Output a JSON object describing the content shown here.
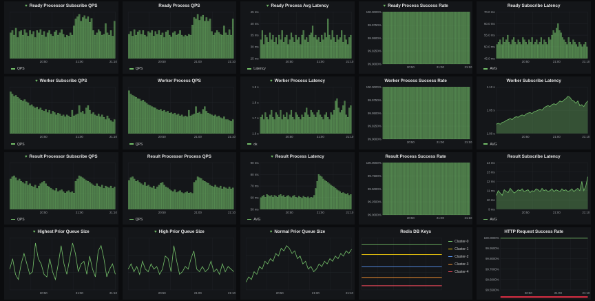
{
  "colors": {
    "green": "#73bf69",
    "panel": "#141619",
    "grid": "#2a2c30",
    "text": "#9fa3a8"
  },
  "panels": [
    {
      "title": "Ready Processor Subscribe QPS",
      "heart": true,
      "kind": "bar",
      "legend": "QPS",
      "yticks": [],
      "xticks": [
        "20:50",
        "21:00",
        "21:10"
      ],
      "values": [
        0.55,
        0.6,
        0.5,
        0.65,
        0.45,
        0.58,
        0.6,
        0.5,
        0.62,
        0.55,
        0.48,
        0.6,
        0.52,
        0.58,
        0.45,
        0.6,
        0.55,
        0.62,
        0.5,
        0.58,
        0.46,
        0.55,
        0.6,
        0.52,
        0.48,
        0.57,
        0.6,
        0.5,
        0.55,
        0.62,
        0.52,
        0.45,
        0.5,
        0.48,
        0.55,
        0.5,
        0.7,
        0.85,
        0.9,
        0.95,
        0.8,
        0.88,
        0.92,
        0.85,
        0.9,
        0.78,
        0.86,
        0.6,
        0.5,
        0.55,
        0.62,
        0.58,
        0.5,
        0.52,
        0.75,
        0.55,
        0.5,
        0.6,
        0.48,
        0.8
      ]
    },
    {
      "title": "Ready Process QPS",
      "heart": false,
      "kind": "bar",
      "legend": "QPS",
      "yticks": [],
      "xticks": [
        "20:50",
        "21:00",
        "21:10"
      ],
      "values": [
        0.52,
        0.58,
        0.48,
        0.62,
        0.5,
        0.57,
        0.6,
        0.52,
        0.6,
        0.5,
        0.47,
        0.58,
        0.55,
        0.6,
        0.48,
        0.58,
        0.52,
        0.6,
        0.5,
        0.55,
        0.45,
        0.57,
        0.6,
        0.5,
        0.46,
        0.55,
        0.58,
        0.5,
        0.53,
        0.6,
        0.5,
        0.47,
        0.5,
        0.48,
        0.52,
        0.5,
        0.72,
        0.88,
        0.85,
        0.95,
        0.82,
        0.9,
        0.93,
        0.8,
        0.88,
        0.8,
        0.85,
        0.58,
        0.5,
        0.55,
        0.6,
        0.56,
        0.52,
        0.5,
        0.7,
        0.55,
        0.5,
        0.62,
        0.5,
        0.85
      ]
    },
    {
      "title": "Ready Process Avg Latency",
      "heart": true,
      "kind": "bar",
      "legend": "Latency",
      "yticks": [
        "45 ms",
        "40 ms",
        "35 ms",
        "30 ms",
        "25 ms"
      ],
      "xticks": [
        "20:50",
        "21:00",
        "21:10"
      ],
      "values": [
        0.4,
        0.6,
        0.3,
        0.5,
        0.45,
        0.35,
        0.55,
        0.4,
        0.5,
        0.35,
        0.45,
        0.3,
        0.5,
        0.4,
        0.6,
        0.35,
        0.45,
        0.5,
        0.3,
        0.4,
        0.55,
        0.45,
        0.35,
        0.5,
        0.4,
        0.45,
        0.3,
        0.5,
        0.6,
        0.4,
        0.45,
        0.35,
        0.5,
        0.55,
        0.7,
        0.45,
        0.5,
        0.4,
        0.45,
        0.35,
        0.5,
        0.4,
        0.55,
        0.45,
        0.85,
        0.5,
        0.4,
        0.6,
        0.45,
        0.35,
        0.5,
        0.4,
        0.45,
        0.6,
        0.35,
        0.5,
        0.4,
        0.3,
        0.45,
        0.5
      ]
    },
    {
      "title": "Ready Process Success Rate",
      "heart": true,
      "kind": "full",
      "legend": "",
      "yticks": [
        "100.0000%",
        "99.9750%",
        "99.9500%",
        "99.9250%",
        "99.9000%"
      ],
      "xticks": [
        "20:50",
        "21:00",
        "21:10"
      ],
      "values": []
    },
    {
      "title": "Ready Subscribe Latency",
      "heart": false,
      "kind": "bar",
      "legend": "AVG",
      "yticks": [
        "70.0 ms",
        "60.0 ms",
        "55.0 ms",
        "50.0 ms",
        "45.0 ms"
      ],
      "xticks": [
        "20:50",
        "21:00",
        "21:10"
      ],
      "values": [
        0.3,
        0.35,
        0.4,
        0.3,
        0.45,
        0.35,
        0.4,
        0.5,
        0.35,
        0.3,
        0.4,
        0.45,
        0.35,
        0.3,
        0.4,
        0.35,
        0.3,
        0.45,
        0.4,
        0.35,
        0.3,
        0.4,
        0.35,
        0.45,
        0.3,
        0.35,
        0.4,
        0.3,
        0.35,
        0.45,
        0.3,
        0.4,
        0.35,
        0.3,
        0.45,
        0.4,
        0.5,
        0.6,
        0.55,
        0.65,
        0.75,
        0.6,
        0.55,
        0.45,
        0.4,
        0.35,
        0.3,
        0.45,
        0.35,
        0.3,
        0.4,
        0.35,
        0.3,
        0.25,
        0.35,
        0.3,
        0.25,
        0.3,
        0.35,
        0.25
      ]
    },
    {
      "title": "Worker Subscribe QPS",
      "heart": true,
      "kind": "bar",
      "legend": "QPS",
      "yticks": [],
      "xticks": [
        "20:50",
        "21:00",
        "21:10"
      ],
      "values": [
        0.9,
        0.85,
        0.8,
        0.82,
        0.78,
        0.75,
        0.72,
        0.7,
        0.73,
        0.68,
        0.66,
        0.6,
        0.62,
        0.58,
        0.55,
        0.57,
        0.52,
        0.55,
        0.5,
        0.48,
        0.52,
        0.45,
        0.5,
        0.42,
        0.48,
        0.45,
        0.4,
        0.44,
        0.42,
        0.38,
        0.4,
        0.36,
        0.4,
        0.38,
        0.35,
        0.5,
        0.38,
        0.4,
        0.42,
        0.6,
        0.45,
        0.48,
        0.42,
        0.55,
        0.6,
        0.5,
        0.42,
        0.45,
        0.4,
        0.38,
        0.42,
        0.36,
        0.4,
        0.35,
        0.3,
        0.38,
        0.32,
        0.28,
        0.25,
        0.3
      ]
    },
    {
      "title": "Worker Process QPS",
      "heart": false,
      "kind": "bar",
      "legend": "QPS",
      "yticks": [],
      "xticks": [
        "20:50",
        "21:00",
        "21:10"
      ],
      "values": [
        0.92,
        0.85,
        0.82,
        0.8,
        0.78,
        0.75,
        0.74,
        0.7,
        0.72,
        0.68,
        0.65,
        0.62,
        0.6,
        0.58,
        0.56,
        0.55,
        0.52,
        0.5,
        0.52,
        0.48,
        0.5,
        0.46,
        0.48,
        0.44,
        0.45,
        0.42,
        0.44,
        0.4,
        0.42,
        0.38,
        0.4,
        0.36,
        0.38,
        0.36,
        0.5,
        0.38,
        0.4,
        0.42,
        0.58,
        0.44,
        0.46,
        0.42,
        0.52,
        0.58,
        0.48,
        0.44,
        0.42,
        0.4,
        0.38,
        0.4,
        0.36,
        0.38,
        0.34,
        0.32,
        0.36,
        0.3,
        0.3,
        0.28,
        0.26,
        0.3
      ]
    },
    {
      "title": "Worker Process Latency",
      "heart": true,
      "kind": "bar",
      "legend": "ok",
      "yticks": [
        "1.9 s",
        "1.8 s",
        "1.7 s",
        "1.6 s"
      ],
      "xticks": [
        "20:50",
        "21:00",
        "21:10"
      ],
      "values": [
        0.35,
        0.4,
        0.3,
        0.45,
        0.35,
        0.3,
        0.4,
        0.5,
        0.35,
        0.3,
        0.45,
        0.4,
        0.35,
        0.5,
        0.3,
        0.4,
        0.35,
        0.45,
        0.3,
        0.4,
        0.5,
        0.35,
        0.3,
        0.45,
        0.4,
        0.35,
        0.3,
        0.4,
        0.35,
        0.45,
        0.55,
        0.4,
        0.35,
        0.5,
        0.45,
        0.4,
        0.35,
        0.45,
        0.5,
        0.4,
        0.35,
        0.3,
        0.4,
        0.45,
        0.35,
        0.3,
        0.45,
        0.4,
        0.5,
        0.7,
        0.75,
        0.55,
        0.45,
        0.5,
        0.6,
        0.7,
        0.4,
        0.35,
        0.55,
        0.6
      ]
    },
    {
      "title": "Worker Process Success Rate",
      "heart": false,
      "kind": "full",
      "legend": "",
      "yticks": [
        "100.0000%",
        "99.9750%",
        "99.9500%",
        "99.9250%",
        "99.9000%"
      ],
      "xticks": [
        "20:50",
        "21:00",
        "21:10"
      ],
      "values": []
    },
    {
      "title": "Worker Subscribe Latency",
      "heart": false,
      "kind": "area",
      "legend": "AVG",
      "yticks": [
        "1.10 s",
        "1.05 s",
        "1.00 s"
      ],
      "xticks": [
        "20:50",
        "21:00",
        "21:10"
      ],
      "values": [
        0.2,
        0.22,
        0.2,
        0.24,
        0.25,
        0.28,
        0.3,
        0.32,
        0.3,
        0.34,
        0.36,
        0.35,
        0.38,
        0.4,
        0.38,
        0.42,
        0.44,
        0.45,
        0.43,
        0.47,
        0.48,
        0.5,
        0.52,
        0.5,
        0.55,
        0.58,
        0.6,
        0.58,
        0.62,
        0.64,
        0.62,
        0.66,
        0.7,
        0.68,
        0.72,
        0.75,
        0.8,
        0.78,
        0.72,
        0.7,
        0.65,
        0.7,
        0.6,
        0.62,
        0.58,
        0.65,
        0.7
      ]
    },
    {
      "title": "Result Processor Subscribe QPS",
      "heart": true,
      "kind": "bar",
      "legend": "QPS",
      "yticks": [],
      "xticks": [
        "20:50",
        "21:00",
        "21:10"
      ],
      "values": [
        0.65,
        0.7,
        0.72,
        0.68,
        0.62,
        0.65,
        0.6,
        0.58,
        0.55,
        0.6,
        0.52,
        0.55,
        0.5,
        0.48,
        0.52,
        0.45,
        0.5,
        0.55,
        0.58,
        0.6,
        0.55,
        0.5,
        0.48,
        0.45,
        0.42,
        0.4,
        0.45,
        0.38,
        0.4,
        0.42,
        0.38,
        0.35,
        0.38,
        0.4,
        0.36,
        0.38,
        0.35,
        0.6,
        0.65,
        0.72,
        0.7,
        0.68,
        0.65,
        0.62,
        0.6,
        0.58,
        0.55,
        0.52,
        0.5,
        0.55,
        0.5,
        0.48,
        0.52,
        0.45,
        0.5,
        0.48,
        0.46,
        0.5,
        0.45,
        0.48
      ]
    },
    {
      "title": "Result Processor Process QPS",
      "heart": false,
      "kind": "bar",
      "legend": "QPS",
      "yticks": [],
      "xticks": [
        "20:50",
        "21:00",
        "21:10"
      ],
      "values": [
        0.62,
        0.68,
        0.7,
        0.65,
        0.6,
        0.62,
        0.58,
        0.55,
        0.52,
        0.58,
        0.5,
        0.52,
        0.48,
        0.46,
        0.5,
        0.44,
        0.48,
        0.52,
        0.56,
        0.58,
        0.52,
        0.48,
        0.46,
        0.43,
        0.4,
        0.38,
        0.42,
        0.36,
        0.38,
        0.4,
        0.36,
        0.34,
        0.36,
        0.38,
        0.35,
        0.36,
        0.34,
        0.58,
        0.62,
        0.7,
        0.68,
        0.66,
        0.62,
        0.6,
        0.58,
        0.56,
        0.52,
        0.5,
        0.48,
        0.52,
        0.48,
        0.46,
        0.5,
        0.44,
        0.48,
        0.46,
        0.44,
        0.48,
        0.44,
        0.46
      ]
    },
    {
      "title": "Result Process Latency",
      "heart": true,
      "kind": "bar",
      "legend": "AVG",
      "yticks": [
        "90 ms",
        "80 ms",
        "70 ms",
        "60 ms",
        "50 ms"
      ],
      "xticks": [
        "20:50",
        "21:00",
        "21:10"
      ],
      "values": [
        0.25,
        0.28,
        0.3,
        0.26,
        0.32,
        0.3,
        0.28,
        0.3,
        0.26,
        0.3,
        0.28,
        0.26,
        0.3,
        0.32,
        0.28,
        0.3,
        0.26,
        0.28,
        0.3,
        0.27,
        0.25,
        0.28,
        0.3,
        0.26,
        0.25,
        0.28,
        0.26,
        0.24,
        0.28,
        0.26,
        0.25,
        0.27,
        0.24,
        0.26,
        0.25,
        0.3,
        0.45,
        0.6,
        0.75,
        0.72,
        0.7,
        0.65,
        0.62,
        0.6,
        0.58,
        0.55,
        0.52,
        0.5,
        0.48,
        0.45,
        0.42,
        0.4,
        0.38,
        0.35,
        0.36,
        0.34,
        0.32,
        0.34,
        0.3,
        0.32
      ]
    },
    {
      "title": "Result Process Success Rate",
      "heart": false,
      "kind": "full",
      "legend": "",
      "yticks": [
        "100.0000%",
        "99.7500%",
        "99.5000%",
        "99.2500%",
        "99.0000%"
      ],
      "xticks": [
        "20:50",
        "21:00",
        "21:10"
      ],
      "values": []
    },
    {
      "title": "Result Subscribe Latency",
      "heart": false,
      "kind": "area",
      "legend": "AVG",
      "yticks": [
        "14 ms",
        "13 ms",
        "12 ms",
        "11 ms",
        "10 ms",
        "9 ms"
      ],
      "xticks": [
        "20:50",
        "21:00",
        "21:10"
      ],
      "values": [
        0.3,
        0.4,
        0.35,
        0.3,
        0.42,
        0.38,
        0.36,
        0.45,
        0.4,
        0.35,
        0.38,
        0.42,
        0.4,
        0.44,
        0.38,
        0.4,
        0.42,
        0.36,
        0.4,
        0.38,
        0.44,
        0.42,
        0.38,
        0.45,
        0.4,
        0.42,
        0.38,
        0.4,
        0.44,
        0.38,
        0.42,
        0.4,
        0.38,
        0.44,
        0.4,
        0.42,
        0.38,
        0.4,
        0.44,
        0.38,
        0.42,
        0.45,
        0.4,
        0.6,
        0.4,
        0.5,
        0.7
      ]
    },
    {
      "title": "Highest Prior Queue Size",
      "heart": true,
      "kind": "line",
      "legend": "",
      "yticks": [],
      "xticks": [
        "20:50",
        "21:00",
        "21:10"
      ],
      "values": [
        0.4,
        0.6,
        0.3,
        0.2,
        0.5,
        0.7,
        0.5,
        0.3,
        0.35,
        0.9,
        0.6,
        0.5,
        0.3,
        0.25,
        0.6,
        0.35,
        0.2,
        0.5,
        0.85,
        0.5,
        0.3,
        0.6,
        0.9,
        0.7,
        0.35,
        0.5,
        0.55,
        0.3,
        0.65,
        0.4,
        0.25,
        0.75,
        0.85,
        0.6,
        0.25,
        0.4,
        0.5,
        0.3
      ]
    },
    {
      "title": "High Prior Queue Size",
      "heart": true,
      "kind": "line",
      "legend": "",
      "yticks": [],
      "xticks": [
        "20:50",
        "21:00",
        "21:10"
      ],
      "values": [
        0.4,
        0.5,
        0.35,
        0.45,
        0.3,
        0.55,
        0.4,
        0.35,
        0.5,
        0.4,
        0.45,
        0.3,
        0.4,
        0.65,
        0.6,
        0.35,
        0.85,
        0.55,
        0.3,
        0.35,
        0.45,
        0.4,
        0.6,
        0.75,
        0.4,
        0.35,
        0.45,
        0.35,
        0.4,
        0.55,
        0.35,
        0.4,
        0.3,
        0.5,
        0.35,
        0.45,
        0.4,
        0.35
      ]
    },
    {
      "title": "Normal Prior Queue Size",
      "heart": true,
      "kind": "line",
      "legend": "",
      "yticks": [],
      "xticks": [
        "20:50",
        "21:00",
        "21:10"
      ],
      "values": [
        0.15,
        0.25,
        0.2,
        0.35,
        0.3,
        0.45,
        0.4,
        0.55,
        0.5,
        0.6,
        0.55,
        0.7,
        0.65,
        0.8,
        0.75,
        0.85,
        0.8,
        0.7,
        0.75,
        0.6,
        0.65,
        0.5,
        0.55,
        0.4,
        0.45,
        0.35,
        0.4,
        0.5,
        0.45,
        0.55,
        0.5,
        0.6,
        0.55,
        0.65,
        0.6,
        0.7,
        0.65,
        0.75,
        0.7,
        0.78
      ]
    },
    {
      "title": "Redis DB Keys",
      "heart": false,
      "kind": "levels",
      "legend": "",
      "yticks": [],
      "xticks": [],
      "levels": [
        {
          "name": "Cluster-0",
          "color": "#73bf69",
          "y": 0.12
        },
        {
          "name": "Cluster-1",
          "color": "#f2cc0c",
          "y": 0.32
        },
        {
          "name": "Cluster-2",
          "color": "#5794f2",
          "y": 0.55
        },
        {
          "name": "Cluster-3",
          "color": "#ff9830",
          "y": 0.76
        },
        {
          "name": "Cluster-4",
          "color": "#f2495c",
          "y": 0.92
        }
      ]
    },
    {
      "title": "HTTP Request Success Rate",
      "heart": false,
      "kind": "http",
      "legend": "",
      "yticks": [
        "100.0000%",
        "99.9500%",
        "99.8000%",
        "99.7000%",
        "99.6000%",
        "99.5500%"
      ],
      "xticks": [
        "20:50",
        "21:00",
        "21:10"
      ],
      "values": []
    }
  ]
}
